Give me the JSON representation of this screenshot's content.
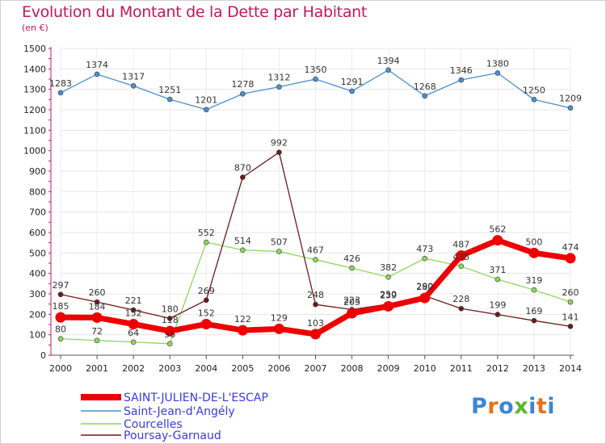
{
  "chart_data": {
    "type": "line",
    "title": "Evolution du Montant de la Dette par Habitant",
    "subtitle": "(en €)",
    "x": [
      "2000",
      "2001",
      "2002",
      "2003",
      "2004",
      "2005",
      "2006",
      "2007",
      "2008",
      "2009",
      "2010",
      "2011",
      "2012",
      "2013",
      "2014"
    ],
    "ylim": [
      0,
      1500
    ],
    "yticks": [
      "0",
      "100",
      "200",
      "300",
      "400",
      "500",
      "600",
      "700",
      "800",
      "900",
      "1000",
      "1100",
      "1200",
      "1300",
      "1400",
      "1500"
    ],
    "grid": true,
    "legend_position": "bottom-left",
    "series": [
      {
        "name": "SAINT-JULIEN-DE-L'ESCAP",
        "color": "#ee0000",
        "values": [
          185,
          184,
          152,
          118,
          152,
          122,
          129,
          103,
          205,
          239,
          280,
          487,
          562,
          500,
          474
        ],
        "labels": [
          "185",
          "184",
          "152",
          "118",
          "152",
          "122",
          "129",
          "103",
          "205",
          "239",
          "280",
          "487",
          "562",
          "500",
          "474"
        ]
      },
      {
        "name": "Saint-Jean-d'Angély",
        "color": "#4b8fd0",
        "values": [
          1283,
          1374,
          1317,
          1251,
          1201,
          1278,
          1312,
          1350,
          1291,
          1394,
          1268,
          1346,
          1380,
          1250,
          1209
        ],
        "labels": [
          "1283",
          "1374",
          "1317",
          "1251",
          "1201",
          "1278",
          "1312",
          "1350",
          "1291",
          "1394",
          "1268",
          "1346",
          "1380",
          "1250",
          "1209"
        ]
      },
      {
        "name": "Courcelles",
        "color": "#8fd65b",
        "values": [
          80,
          72,
          64,
          56,
          552,
          514,
          507,
          467,
          426,
          382,
          473,
          435,
          371,
          319,
          260
        ],
        "labels": [
          "80",
          "72",
          "64",
          "56",
          "552",
          "514",
          "507",
          "467",
          "426",
          "382",
          "473",
          "435",
          "371",
          "319",
          "260"
        ]
      },
      {
        "name": "Poursay-Garnaud",
        "color": "#6e1a1a",
        "values": [
          297,
          260,
          221,
          180,
          269,
          870,
          992,
          248,
          223,
          250,
          290,
          228,
          199,
          169,
          141
        ],
        "labels": [
          "297",
          "260",
          "221",
          "180",
          "269",
          "870",
          "992",
          "248",
          "223",
          "250",
          "290",
          "228",
          "199",
          "169",
          "141"
        ]
      }
    ]
  },
  "logo": {
    "text": "Proxiti",
    "letters": [
      "P",
      "r",
      "o",
      "x",
      "i",
      "t",
      "i"
    ],
    "colors": [
      "#3a86d6",
      "#e8701a",
      "#3a86d6",
      "#5ab62f",
      "#3a86d6",
      "#e8701a",
      "#3a86d6"
    ]
  }
}
